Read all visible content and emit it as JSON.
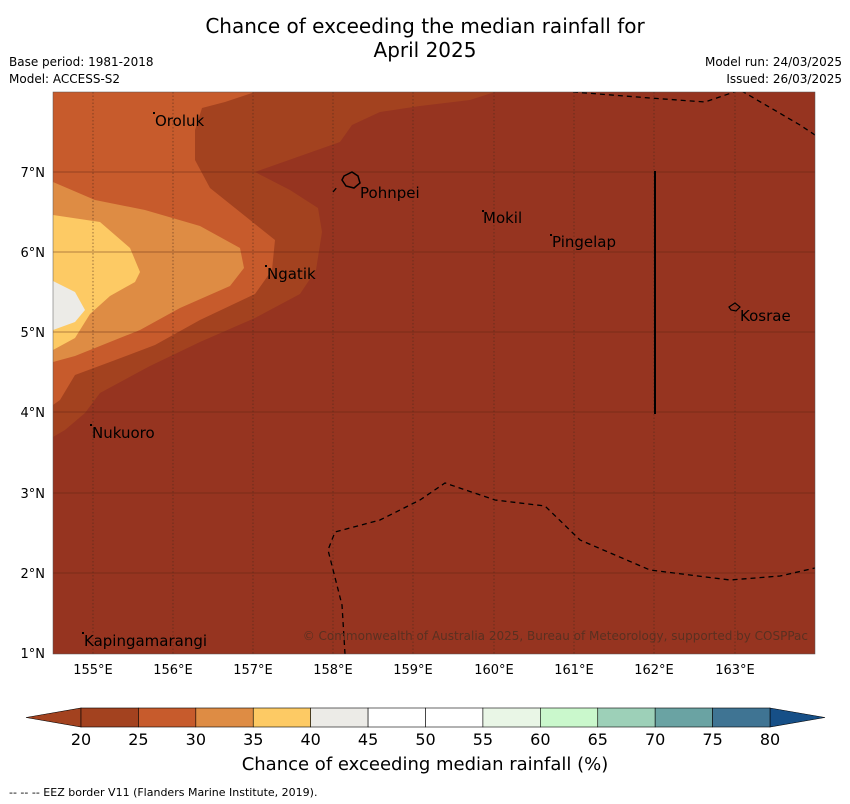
{
  "title": {
    "line1": "Chance of exceeding the median rainfall for",
    "line2": "April 2025"
  },
  "meta_left": {
    "base_period": "Base period: 1981-2018",
    "model": "Model: ACCESS-S2"
  },
  "meta_right": {
    "model_run": "Model run: 24/03/2025",
    "issued": "Issued: 26/03/2025"
  },
  "map": {
    "lon_ticks": [
      "155°E",
      "156°E",
      "157°E",
      "158°E",
      "159°E",
      "160°E",
      "161°E",
      "162°E",
      "163°E"
    ],
    "lat_ticks": [
      "7°N",
      "6°N",
      "5°N",
      "4°N",
      "3°N",
      "2°N",
      "1°N"
    ],
    "places": [
      "Oroluk",
      "Pohnpei",
      "Mokil",
      "Pingelap",
      "Ngatik",
      "Kosrae",
      "Nukuoro",
      "Kapingamarangi"
    ],
    "copyright": "© Commonwealth of Australia 2025, Bureau of Meteorology, supported by COSPPac"
  },
  "colorbar": {
    "ticks": [
      "20",
      "25",
      "30",
      "35",
      "40",
      "45",
      "50",
      "55",
      "60",
      "65",
      "70",
      "75",
      "80"
    ],
    "colors": [
      "#a3421f",
      "#c75b2c",
      "#de8c44",
      "#fdca64",
      "#ecebe7",
      "#ffffff",
      "#ffffff",
      "#e9f6e6",
      "#caf8cc",
      "#9dd0b8",
      "#6aa3a3",
      "#3f7493",
      "#164f87"
    ],
    "low_color": "#a3421f",
    "high_color": "#164f87",
    "label": "Chance of exceeding median rainfall (%)"
  },
  "footnote": "--  --  -- EEZ border V11 (Flanders Marine Institute, 2019)."
}
